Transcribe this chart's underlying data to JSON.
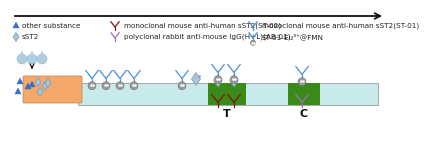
{
  "bg_color": "#ffffff",
  "arrow_color": "#111111",
  "legend": {
    "triangle_color": "#3a6fc4",
    "triangle_label": "other substance",
    "diamond_color": "#a8c4d8",
    "diamond_label": "sST2",
    "y_dark_red_label": "monoclonal mouse anti-human sST2(ST-02)",
    "y_dark_red_color": "#8b1010",
    "y_blue_label": "monoclonal mouse anti-human sST2(ST-01)",
    "y_blue_color": "#4a90d9",
    "y_purple_label": "polyclonal rabbit anti-mouse IgG(H+L)(AB-01)",
    "y_purple_color": "#9b6fc4",
    "y_labeled_label": "ST-01-Eu³⁺@FMN",
    "y_labeled_color": "#4a90d9"
  },
  "strip_color": "#c8eaea",
  "sample_pad_color": "#f4a96a",
  "t_zone_color": "#3a8a1a",
  "c_zone_color": "#3a8a1a",
  "drop_color": "#b0cce0",
  "font_size_legend": 5.2,
  "font_size_tc": 8
}
